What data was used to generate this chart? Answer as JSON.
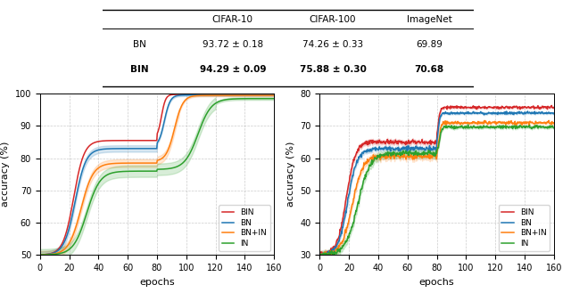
{
  "title_table": {
    "headers": [
      "",
      "CIFAR-10",
      "CIFAR-100",
      "ImageNet"
    ],
    "rows": [
      [
        "BN",
        "93.72 ± 0.18",
        "74.26 ± 0.33",
        "69.89"
      ],
      [
        "BIN",
        "94.29 ± 0.09",
        "75.88 ± 0.30",
        "70.68"
      ]
    ],
    "bold_row": 1
  },
  "colors": {
    "BIN": "#d62728",
    "BN": "#1f77b4",
    "BN+IN": "#ff7f0e",
    "IN": "#2ca02c"
  },
  "left_plot": {
    "xlabel": "epochs",
    "ylabel": "accuracy (%)",
    "xlim": [
      0,
      160
    ],
    "ylim": [
      50,
      100
    ],
    "yticks": [
      50,
      60,
      70,
      80,
      90,
      100
    ],
    "xticks": [
      0,
      20,
      40,
      60,
      80,
      100,
      120,
      140,
      160
    ],
    "grid_color": "#aaaaaa",
    "legend_loc": "lower right"
  },
  "right_plot": {
    "xlabel": "epochs",
    "ylabel": "accuracy (%)",
    "xlim": [
      0,
      160
    ],
    "ylim": [
      30,
      80
    ],
    "yticks": [
      30,
      40,
      50,
      60,
      70,
      80
    ],
    "xticks": [
      0,
      20,
      40,
      60,
      80,
      100,
      120,
      140,
      160
    ],
    "grid_color": "#aaaaaa",
    "legend_loc": "lower right"
  },
  "figure_bg": "#ffffff",
  "axes_bg": "#ffffff"
}
